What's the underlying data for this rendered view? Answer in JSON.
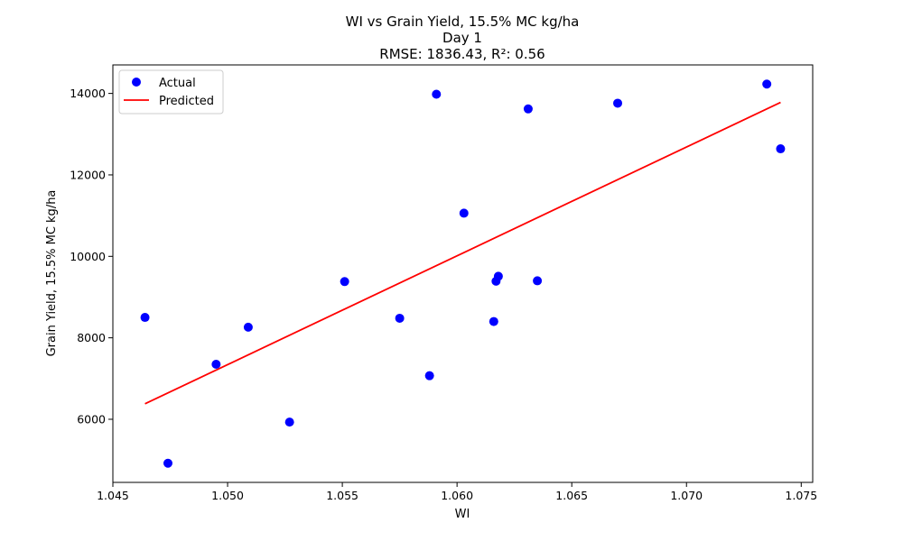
{
  "chart_data": {
    "type": "scatter",
    "title_lines": [
      "WI vs Grain Yield, 15.5% MC kg/ha",
      "Day 1",
      "RMSE: 1836.43, R²: 0.56"
    ],
    "xlabel": "WI",
    "ylabel": "Grain Yield, 15.5% MC kg/ha",
    "xlim": [
      1.045,
      1.0755
    ],
    "ylim": [
      4450,
      14700
    ],
    "xticks": [
      1.045,
      1.05,
      1.055,
      1.06,
      1.065,
      1.07,
      1.075
    ],
    "xtick_labels": [
      "1.045",
      "1.050",
      "1.055",
      "1.060",
      "1.065",
      "1.070",
      "1.075"
    ],
    "yticks": [
      6000,
      8000,
      10000,
      12000,
      14000
    ],
    "ytick_labels": [
      "6000",
      "8000",
      "10000",
      "12000",
      "14000"
    ],
    "grid": false,
    "legend_position": "upper-left",
    "series": [
      {
        "name": "Actual",
        "kind": "scatter",
        "color": "#0000ff",
        "x": [
          1.0464,
          1.0474,
          1.0495,
          1.0509,
          1.0527,
          1.0551,
          1.0575,
          1.0588,
          1.0591,
          1.0603,
          1.0616,
          1.0617,
          1.0618,
          1.0631,
          1.0635,
          1.067,
          1.0735,
          1.0741
        ],
        "y": [
          8500,
          4920,
          7350,
          8260,
          5930,
          9380,
          8480,
          7070,
          13980,
          11060,
          8400,
          9390,
          9510,
          13620,
          9400,
          13760,
          14230,
          12640
        ]
      },
      {
        "name": "Predicted",
        "kind": "line",
        "color": "#ff0000",
        "x": [
          1.0464,
          1.0741
        ],
        "y": [
          6380,
          13780
        ]
      }
    ]
  }
}
